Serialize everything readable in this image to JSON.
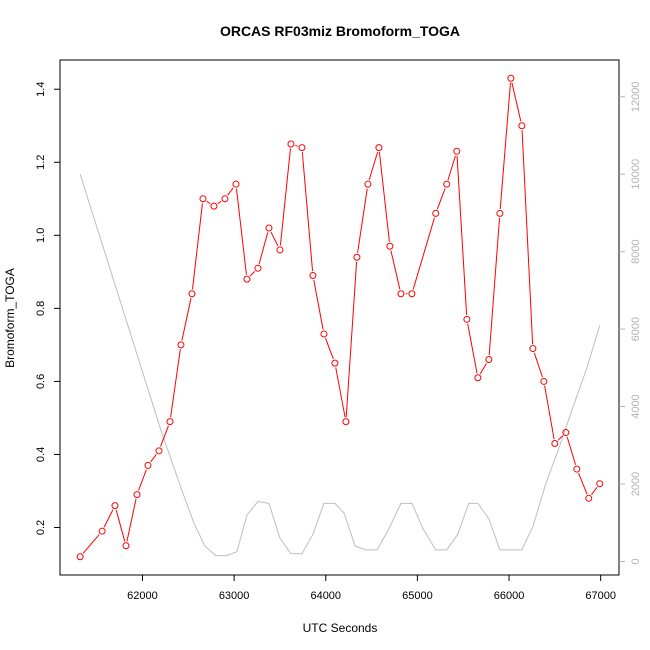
{
  "chart_data": {
    "type": "line",
    "title": "ORCAS RF03miz Bromoform_TOGA",
    "xlabel": "UTC Seconds",
    "ylabel": "Bromoform_TOGA",
    "xlim": [
      61100,
      67200
    ],
    "ylim": [
      0.07,
      1.48
    ],
    "y2lim": [
      -350,
      12950
    ],
    "xticks": [
      62000,
      63000,
      64000,
      65000,
      66000,
      67000
    ],
    "yticks": [
      0.2,
      0.4,
      0.6,
      0.8,
      1.0,
      1.2,
      1.4
    ],
    "y2ticks": [
      0,
      2000,
      4000,
      6000,
      8000,
      10000,
      12000
    ],
    "y2tick_labels": [
      "0",
      "2000",
      "4000",
      "6000",
      "8000",
      "10000",
      "12000"
    ],
    "grid": false,
    "series": [
      {
        "axis": "left",
        "color": "#ff0000",
        "marker": "open-circle",
        "x": [
          61320,
          61560,
          61700,
          61820,
          61940,
          62060,
          62180,
          62300,
          62420,
          62540,
          62660,
          62780,
          62900,
          63020,
          63140,
          63260,
          63380,
          63500,
          63620,
          63740,
          63860,
          63980,
          64100,
          64220,
          64340,
          64460,
          64580,
          64700,
          64820,
          64940,
          65200,
          65320,
          65430,
          65540,
          65660,
          65780,
          65900,
          66020,
          66140,
          66260,
          66380,
          66500,
          66620,
          66740,
          66870,
          66990
        ],
        "y": [
          0.12,
          0.19,
          0.26,
          0.15,
          0.29,
          0.37,
          0.41,
          0.49,
          0.7,
          0.84,
          1.1,
          1.08,
          1.1,
          1.14,
          0.88,
          0.91,
          1.02,
          0.96,
          1.25,
          1.24,
          0.89,
          0.73,
          0.65,
          0.49,
          0.94,
          1.14,
          1.24,
          0.97,
          0.84,
          0.84,
          1.06,
          1.14,
          1.23,
          0.77,
          0.61,
          0.66,
          1.06,
          1.43,
          1.3,
          0.69,
          0.6,
          0.43,
          0.46,
          0.36,
          0.28,
          0.32
        ]
      },
      {
        "axis": "right",
        "color": "#bebebe",
        "marker": "none",
        "x": [
          61320,
          61800,
          62200,
          62420,
          62560,
          62680,
          62800,
          62920,
          63030,
          63140,
          63260,
          63380,
          63500,
          63620,
          63740,
          63860,
          63980,
          64100,
          64200,
          64320,
          64440,
          64560,
          64680,
          64820,
          64940,
          65060,
          65200,
          65320,
          65440,
          65560,
          65660,
          65780,
          65900,
          66040,
          66140,
          66260,
          66400,
          66540,
          66700,
          66850,
          66990
        ],
        "y": [
          10000,
          6400,
          3400,
          1900,
          1000,
          400,
          150,
          150,
          250,
          1200,
          1550,
          1500,
          600,
          200,
          200,
          700,
          1500,
          1500,
          1250,
          400,
          300,
          300,
          800,
          1500,
          1500,
          850,
          300,
          300,
          700,
          1500,
          1500,
          1100,
          300,
          300,
          300,
          900,
          2000,
          2900,
          4000,
          5000,
          6100
        ]
      }
    ]
  }
}
